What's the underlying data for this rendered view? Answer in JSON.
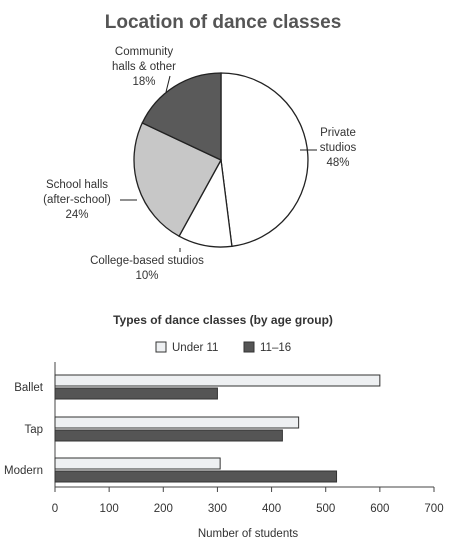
{
  "chart_data": [
    {
      "type": "pie",
      "title": "Location of dance classes",
      "slices": [
        {
          "label_lines": [
            "Private",
            "studios",
            "48%"
          ],
          "value": 48,
          "color": "#ffffff"
        },
        {
          "label_lines": [
            "College-based studios",
            "10%"
          ],
          "value": 10,
          "color": "#ffffff"
        },
        {
          "label_lines": [
            "School halls",
            "(after-school)",
            "24%"
          ],
          "value": 24,
          "color": "#c7c7c7"
        },
        {
          "label_lines": [
            "Community",
            "halls & other",
            "18%"
          ],
          "value": 18,
          "color": "#5a5a5a"
        }
      ]
    },
    {
      "type": "bar",
      "orientation": "horizontal",
      "title": "Types of dance classes (by age group)",
      "categories": [
        "Ballet",
        "Tap",
        "Modern"
      ],
      "series": [
        {
          "name": "Under 11",
          "values": [
            600,
            450,
            305
          ],
          "color": "#eef0f2"
        },
        {
          "name": "11–16",
          "values": [
            300,
            420,
            520
          ],
          "color": "#555555"
        }
      ],
      "xlim": [
        0,
        700
      ],
      "xticks": [
        0,
        100,
        200,
        300,
        400,
        500,
        600,
        700
      ],
      "xlabel": "Number of students",
      "ylabel": "",
      "grid": false,
      "legend": "top"
    }
  ]
}
